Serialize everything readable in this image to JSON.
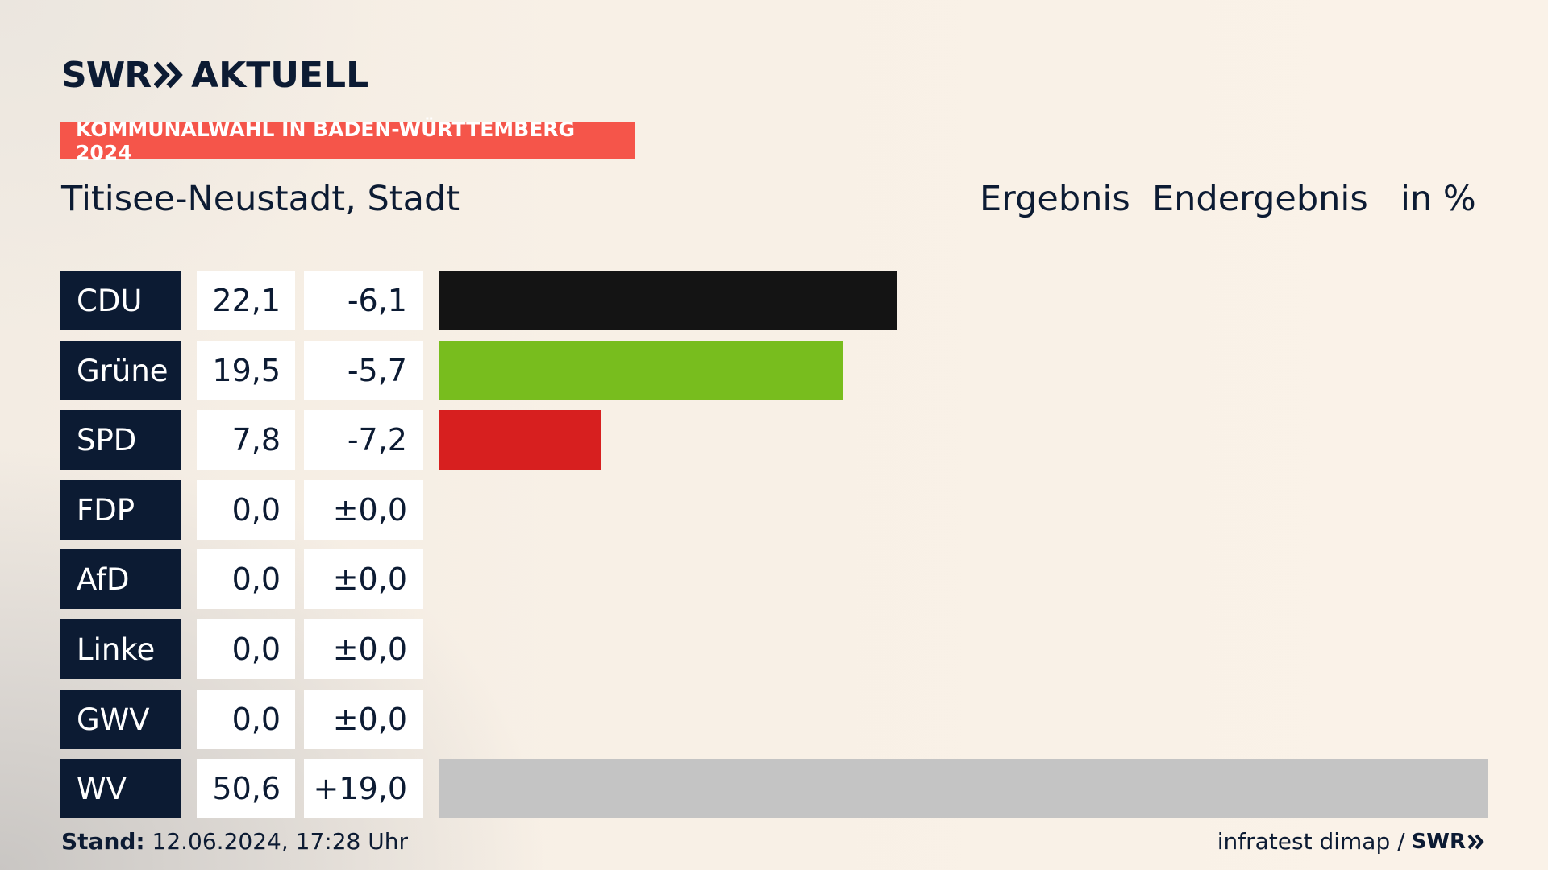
{
  "header": {
    "logo_left": "SWR",
    "logo_right": "AKTUELL",
    "tag": "KOMMUNALWAHL IN BADEN-WÜRTTEMBERG 2024",
    "title": "Titisee-Neustadt, Stadt",
    "col_ergebnis": "Ergebnis",
    "col_endergebnis": "Endergebnis",
    "col_unit": "in %"
  },
  "colors": {
    "accent": "#f5554a",
    "navy": "#0c1b33"
  },
  "chart_data": {
    "type": "bar",
    "orientation": "horizontal",
    "categories": [
      "CDU",
      "Grüne",
      "SPD",
      "FDP",
      "AfD",
      "Linke",
      "GWV",
      "WV"
    ],
    "values": [
      22.1,
      19.5,
      7.8,
      0.0,
      0.0,
      0.0,
      0.0,
      50.6
    ],
    "value_labels": [
      "22,1",
      "19,5",
      "7,8",
      "0,0",
      "0,0",
      "0,0",
      "0,0",
      "50,6"
    ],
    "diff_labels": [
      "-6,1",
      "-5,7",
      "-7,2",
      "±0,0",
      "±0,0",
      "±0,0",
      "±0,0",
      "+19,0"
    ],
    "colors": [
      "#141414",
      "#78bd1e",
      "#d71f1f",
      "#f3d700",
      "#1aa0e0",
      "#be3075",
      "#8a8a8a",
      "#c4c4c4"
    ],
    "xlim": [
      0,
      50.6
    ]
  },
  "footer": {
    "stand_label": "Stand:",
    "stand_value": " 12.06.2024, 17:28 Uhr",
    "source": "infratest dimap /",
    "source_logo": "SWR"
  }
}
